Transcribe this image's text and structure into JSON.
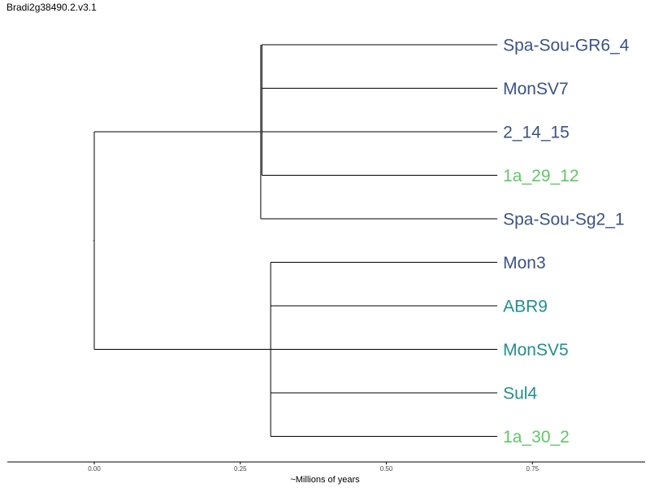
{
  "title": "Bradi2g38490.2.v3.1",
  "colors": {
    "clade_a": "#3b528b",
    "clade_b": "#21908c",
    "clade_c": "#5ec962",
    "branch": "#000000"
  },
  "tree": {
    "leaves": [
      {
        "name": "Spa-Sou-GR6_4",
        "color": "#3b528b"
      },
      {
        "name": "MonSV7",
        "color": "#3b528b"
      },
      {
        "name": "2_14_15",
        "color": "#3b528b"
      },
      {
        "name": "1a_29_12",
        "color": "#5ec962"
      },
      {
        "name": "Spa-Sou-Sg2_1",
        "color": "#3b528b"
      },
      {
        "name": "Mon3",
        "color": "#3b528b"
      },
      {
        "name": "ABR9",
        "color": "#21908c"
      },
      {
        "name": "MonSV5",
        "color": "#21908c"
      },
      {
        "name": "Sul4",
        "color": "#21908c"
      },
      {
        "name": "1a_30_2",
        "color": "#5ec962"
      }
    ],
    "root_time": 0.0,
    "leaf_time": 0.69,
    "clades": [
      {
        "time": 0.285,
        "subclade_time": 0.287,
        "subclade_leaves": [
          0,
          1,
          2,
          3
        ],
        "leaves": [
          0,
          1,
          2,
          3,
          4
        ]
      },
      {
        "time": 0.302,
        "leaves": [
          5,
          6,
          7,
          8,
          9
        ]
      }
    ]
  },
  "axis": {
    "label": "~Millions of years",
    "ticks": [
      {
        "value": 0.0,
        "label": "0.00"
      },
      {
        "value": 0.25,
        "label": "0.25"
      },
      {
        "value": 0.5,
        "label": "0.50"
      },
      {
        "value": 0.75,
        "label": "0.75"
      }
    ],
    "range": [
      -0.15,
      0.95
    ]
  }
}
